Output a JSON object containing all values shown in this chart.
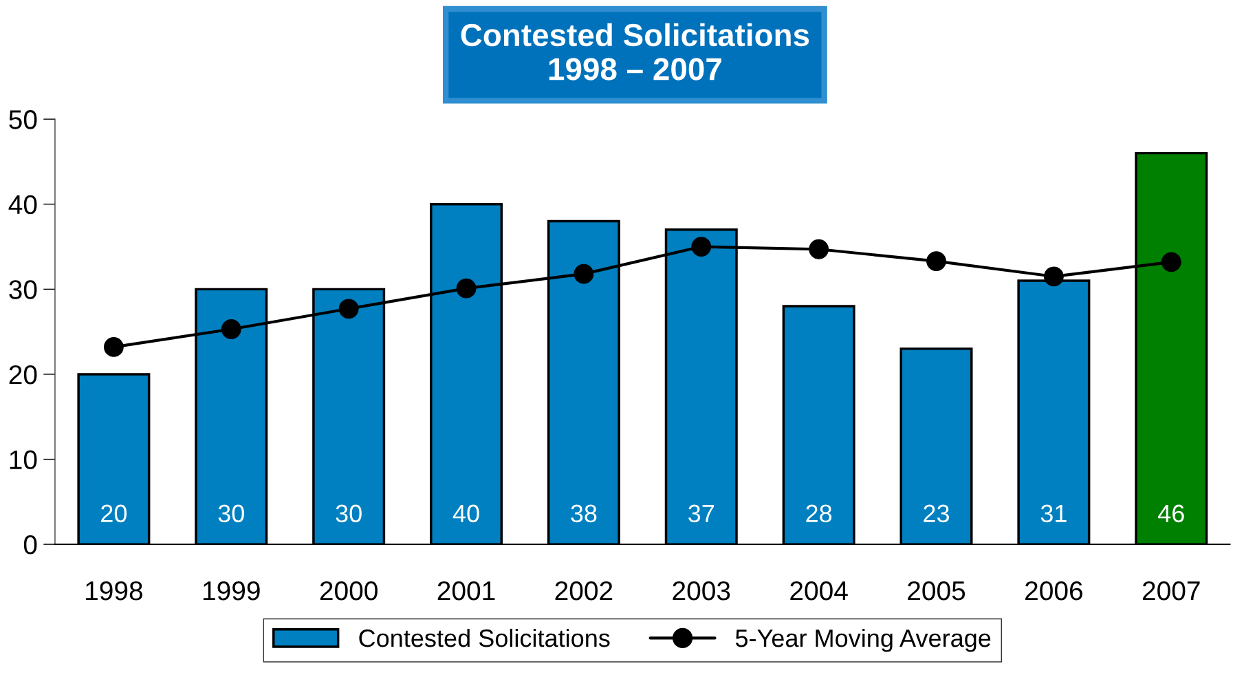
{
  "chart_data": {
    "type": "bar",
    "title": "Contested Solicitations\n1998 – 2007",
    "categories": [
      "1998",
      "1999",
      "2000",
      "2001",
      "2002",
      "2003",
      "2004",
      "2005",
      "2006",
      "2007"
    ],
    "series": [
      {
        "name": "Contested Solicitations",
        "color": "#0080c0",
        "colors": [
          "#0080c0",
          "#0080c0",
          "#0080c0",
          "#0080c0",
          "#0080c0",
          "#0080c0",
          "#0080c0",
          "#0080c0",
          "#0080c0",
          "#008000"
        ],
        "values": [
          20,
          30,
          30,
          40,
          38,
          37,
          28,
          23,
          31,
          46
        ],
        "value_labels": [
          "20",
          "30",
          "30",
          "40",
          "38",
          "37",
          "28",
          "23",
          "31",
          "46"
        ]
      },
      {
        "name": "5-Year Moving Average",
        "type": "line",
        "color": "#000000",
        "marker": "circle",
        "line_style": "solid",
        "values": [
          23.2,
          25.3,
          27.7,
          30.1,
          31.8,
          35.0,
          34.7,
          33.3,
          31.5,
          33.2
        ]
      }
    ],
    "ylim": [
      0,
      50
    ],
    "yticks": [
      0,
      10,
      20,
      30,
      40,
      50
    ],
    "legend": "bottom"
  }
}
